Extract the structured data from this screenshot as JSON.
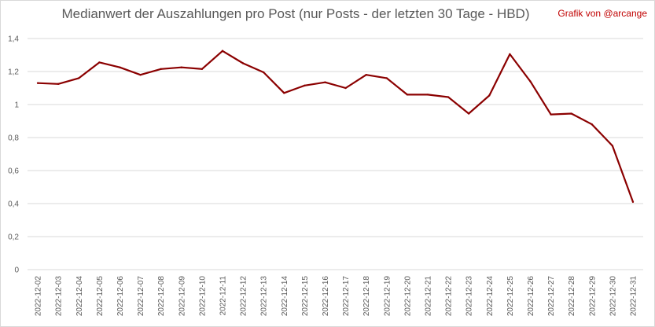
{
  "title": "Medianwert der Auszahlungen pro Post (nur Posts - der letzten 30 Tage - HBD)",
  "credit": "Grafik von @arcange",
  "colors": {
    "line": "#8b0000",
    "credit": "#c00000",
    "grid": "#d9d9d9"
  },
  "chart_data": {
    "type": "line",
    "title": "Medianwert der Auszahlungen pro Post (nur Posts - der letzten 30 Tage - HBD)",
    "xlabel": "",
    "ylabel": "",
    "ylim": [
      0,
      1.4
    ],
    "yticks": [
      "0",
      "0,2",
      "0,4",
      "0,6",
      "0,8",
      "1",
      "1,2",
      "1,4"
    ],
    "grid": true,
    "legend": "none",
    "x": [
      "2022-12-02",
      "2022-12-03",
      "2022-12-04",
      "2022-12-05",
      "2022-12-06",
      "2022-12-07",
      "2022-12-08",
      "2022-12-09",
      "2022-12-10",
      "2022-12-11",
      "2022-12-12",
      "2022-12-13",
      "2022-12-14",
      "2022-12-15",
      "2022-12-16",
      "2022-12-17",
      "2022-12-18",
      "2022-12-19",
      "2022-12-20",
      "2022-12-21",
      "2022-12-22",
      "2022-12-23",
      "2022-12-24",
      "2022-12-25",
      "2022-12-26",
      "2022-12-27",
      "2022-12-28",
      "2022-12-29",
      "2022-12-30",
      "2022-12-31"
    ],
    "series": [
      {
        "values": [
          1.13,
          1.125,
          1.16,
          1.255,
          1.225,
          1.18,
          1.215,
          1.225,
          1.215,
          1.325,
          1.25,
          1.195,
          1.07,
          1.115,
          1.135,
          1.1,
          1.18,
          1.16,
          1.06,
          1.06,
          1.045,
          0.945,
          1.055,
          1.305,
          1.14,
          0.94,
          0.945,
          0.88,
          0.75,
          0.41
        ]
      }
    ]
  }
}
